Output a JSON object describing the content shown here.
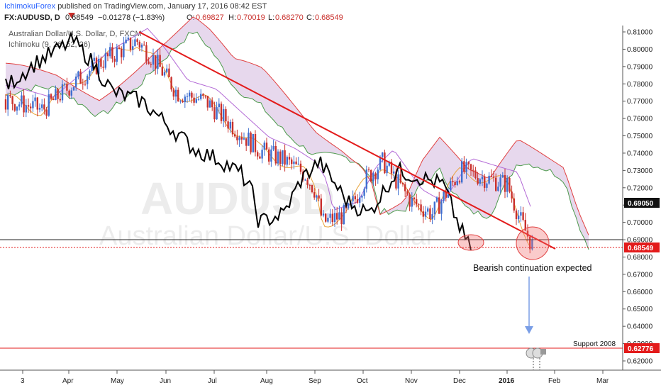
{
  "publish_line": {
    "author": "IchimokuForex",
    "text": "published on TradingView.com, January 17, 2016 08:42 EST"
  },
  "header": {
    "symbol": "FX:AUDUSD, D",
    "price": "0.68549",
    "change": "−0.01278 (−1.83%)",
    "open_label": "O:",
    "open": "0.69827",
    "high_label": "H:",
    "high": "0.70019",
    "low_label": "L:",
    "low": "0.68270",
    "close_label": "C:",
    "close": "0.68549"
  },
  "legend": {
    "line1": "Australian Dollar/U.S. Dollar, D, FXCM",
    "line2": "Ichimoku (9, 26, 52, 26)"
  },
  "watermark": {
    "symbol": "AUDUSD",
    "name": "Australian Dollar/U.S. Dollar"
  },
  "annotations": {
    "bearish": "Bearish continuation expected",
    "support": "Support 2008"
  },
  "price_tags": {
    "top": "0.69050",
    "current": "0.68549",
    "support": "0.62776"
  },
  "colors": {
    "up": "#3f6fd0",
    "down": "#c9302c",
    "trendline": "#e31b1b",
    "chikou": "#000000",
    "tenkan": "#e8a33a",
    "kijun": "#b36ad6",
    "span_a": "#4c9a4c",
    "span_b": "#e04040",
    "cloud": "#c9a8d8",
    "support": "#e31b1b",
    "arrow": "#7a9ee6",
    "circle": "#f06a6a"
  },
  "chart_data": {
    "type": "candlestick",
    "title": "Australian Dollar/U.S. Dollar, D, FXCM",
    "ylim": [
      0.615,
      0.815
    ],
    "y_ticks": [
      "0.81000",
      "0.80000",
      "0.79000",
      "0.78000",
      "0.77000",
      "0.76000",
      "0.75000",
      "0.74000",
      "0.73000",
      "0.72000",
      "0.71000",
      "0.70000",
      "0.69000",
      "0.68000",
      "0.67000",
      "0.66000",
      "0.65000",
      "0.64000",
      "0.63000",
      "0.62000"
    ],
    "x_ticks": [
      "3",
      "Apr",
      "May",
      "Jun",
      "Jul",
      "Aug",
      "Sep",
      "Oct",
      "Nov",
      "Dec",
      "2016",
      "Feb",
      "Mar"
    ],
    "price_path": [
      [
        "Mar",
        0.772
      ],
      [
        "Apr",
        0.765
      ],
      [
        "Apr",
        0.778
      ],
      [
        "May",
        0.792
      ],
      [
        "May",
        0.805
      ],
      [
        "May",
        0.795
      ],
      [
        "Jun",
        0.775
      ],
      [
        "Jun",
        0.77
      ],
      [
        "Jul",
        0.755
      ],
      [
        "Jul",
        0.742
      ],
      [
        "Aug",
        0.736
      ],
      [
        "Aug",
        0.728
      ],
      [
        "Aug",
        0.718
      ],
      [
        "Sep",
        0.7
      ],
      [
        "Sep",
        0.705
      ],
      [
        "Oct",
        0.725
      ],
      [
        "Oct",
        0.735
      ],
      [
        "Nov",
        0.712
      ],
      [
        "Nov",
        0.705
      ],
      [
        "Dec",
        0.73
      ],
      [
        "Dec",
        0.725
      ],
      [
        "2016",
        0.722
      ],
      [
        "2016",
        0.7
      ],
      [
        "2016",
        0.6855
      ]
    ],
    "support_level": 0.62776,
    "horizontal_level": 0.6905,
    "current_level": 0.68549
  }
}
